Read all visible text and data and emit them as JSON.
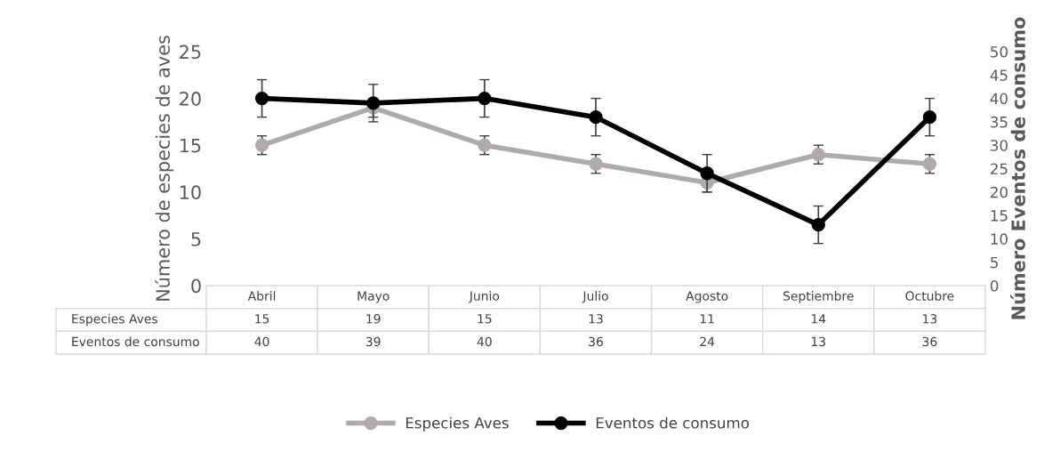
{
  "chart_data": {
    "type": "line",
    "categories": [
      "Abril",
      "Mayo",
      "Junio",
      "Julio",
      "Agosto",
      "Septiembre",
      "Octubre"
    ],
    "series": [
      {
        "name": "Especies Aves",
        "color": "#afabab",
        "values": [
          15,
          19,
          15,
          13,
          11,
          14,
          13
        ],
        "errors": [
          1,
          1,
          1,
          1,
          1,
          1,
          1
        ]
      },
      {
        "name": "Eventos de consumo",
        "color": "#000000",
        "axis": "y2",
        "values": [
          40,
          39,
          40,
          36,
          24,
          13,
          36
        ],
        "errors": [
          4,
          4,
          4,
          4,
          4,
          4,
          4
        ]
      }
    ],
    "ylabel": "Número de especies de aves",
    "y2label": "Número Eventos de consumo",
    "ylim": [
      0,
      25
    ],
    "yticks": [
      0,
      5,
      10,
      15,
      20,
      25
    ],
    "y2lim": [
      0,
      50
    ],
    "y2ticks": [
      0,
      5,
      10,
      15,
      20,
      25,
      30,
      35,
      40,
      45,
      50
    ],
    "marker": "circle",
    "line_style": "solid",
    "grid": false,
    "legend": "bottom",
    "data_labels": true
  }
}
